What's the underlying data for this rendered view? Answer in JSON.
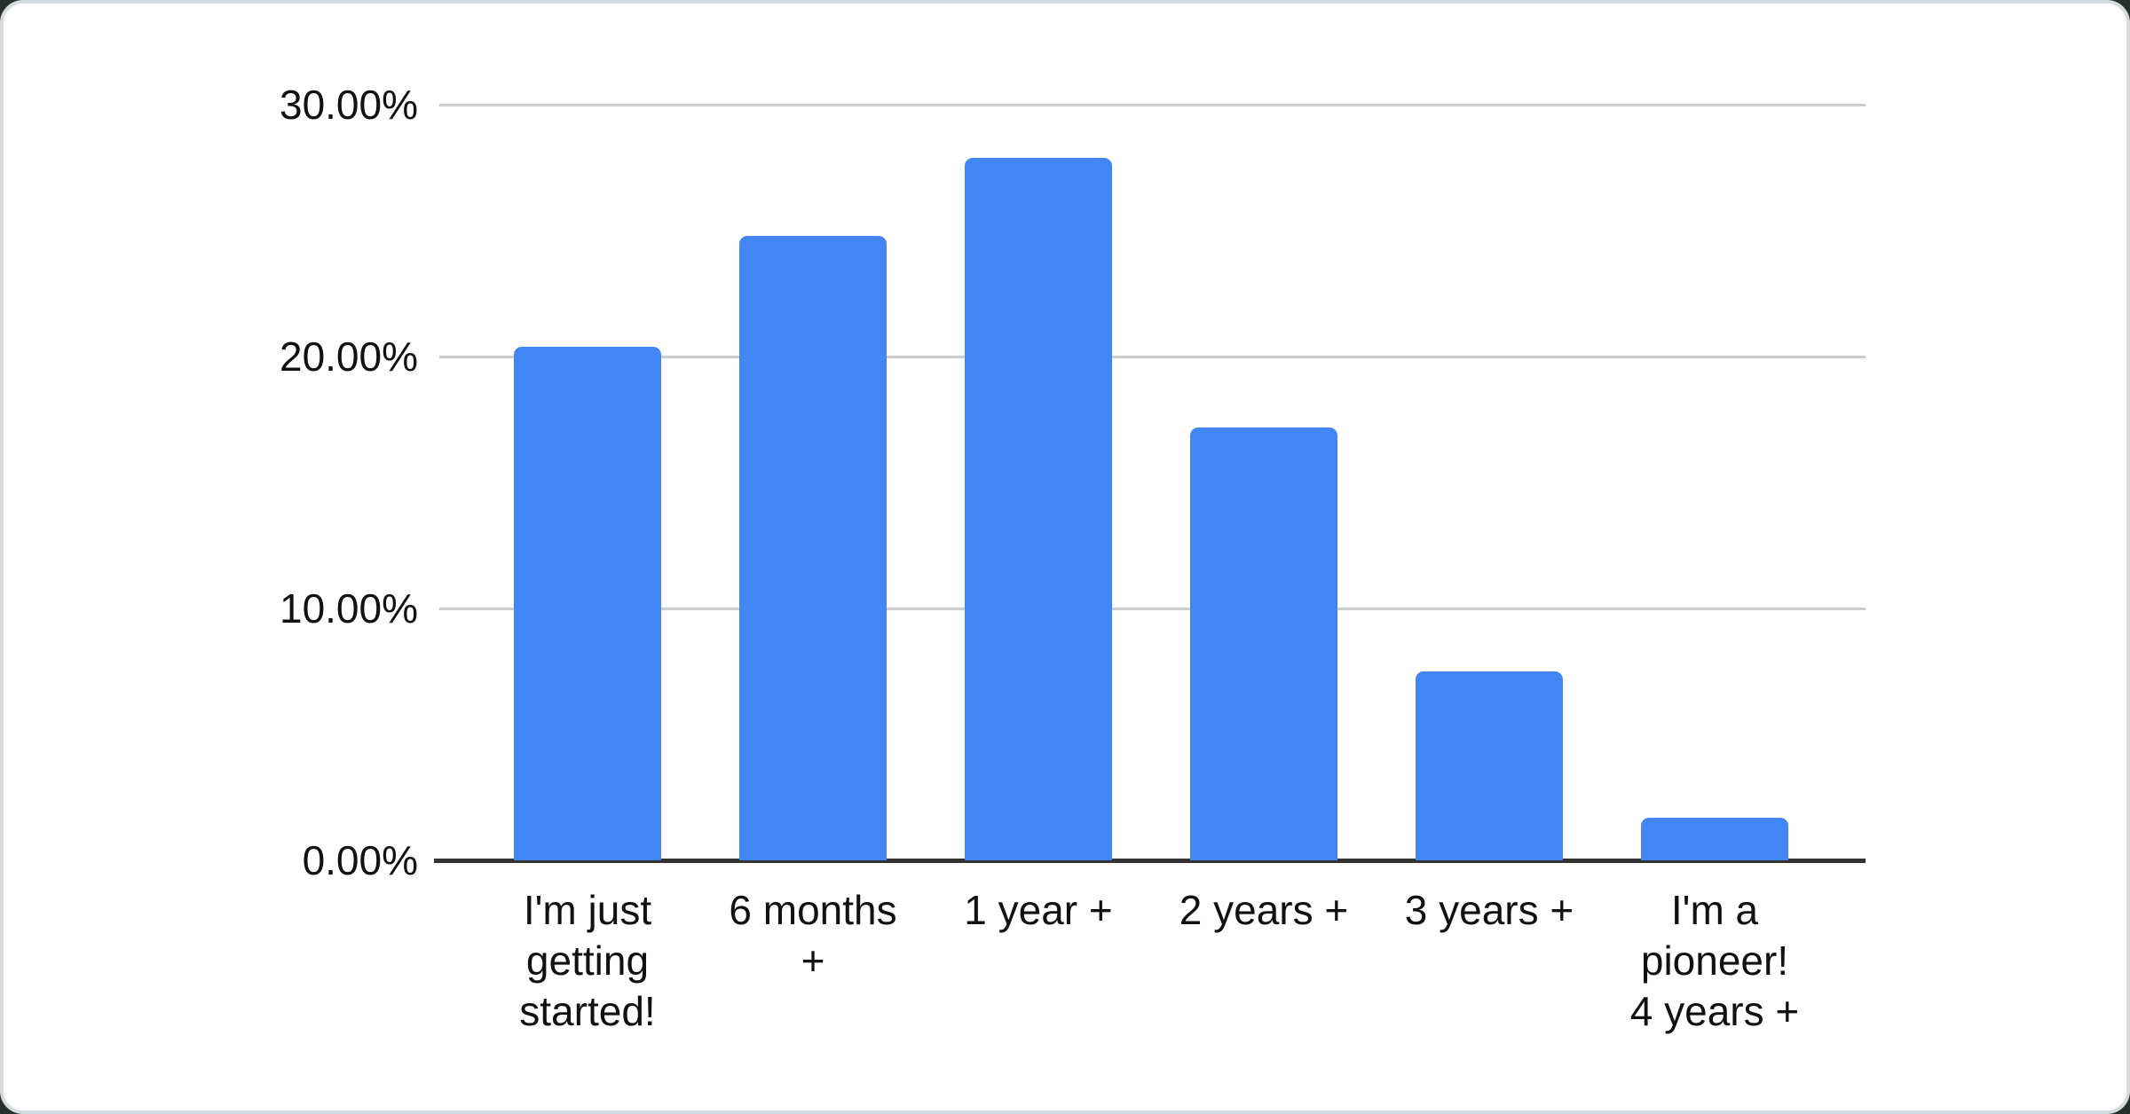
{
  "page": {
    "background_color": "#263129",
    "card_background": "#ffffff",
    "card_border_color": "#d6dbe0"
  },
  "chart_data": {
    "type": "bar",
    "title": "",
    "xlabel": "",
    "ylabel": "",
    "categories": [
      "I'm just getting started!",
      "6 months +",
      "1 year +",
      "2 years +",
      "3 years +",
      "I'm a pioneer! 4 years +"
    ],
    "label_lines": [
      [
        "I'm just",
        "getting",
        "started!"
      ],
      [
        "6 months",
        "+"
      ],
      [
        "1 year +"
      ],
      [
        "2 years +"
      ],
      [
        "3 years +"
      ],
      [
        "I'm a",
        "pioneer!",
        "4 years +"
      ]
    ],
    "values": [
      20.4,
      24.8,
      27.9,
      17.2,
      7.5,
      1.7
    ],
    "value_unit": "%",
    "ylim": [
      0,
      30
    ],
    "y_ticks": [
      {
        "label": "30.00%",
        "value": 30
      },
      {
        "label": "20.00%",
        "value": 20
      },
      {
        "label": "10.00%",
        "value": 10
      },
      {
        "label": "0.00%",
        "value": 0
      }
    ],
    "grid": true,
    "legend_position": "none",
    "bar_color": "#4285f4",
    "gridline_color": "#cccccc",
    "axis_line_color": "#333333",
    "text_color": "#111111"
  }
}
